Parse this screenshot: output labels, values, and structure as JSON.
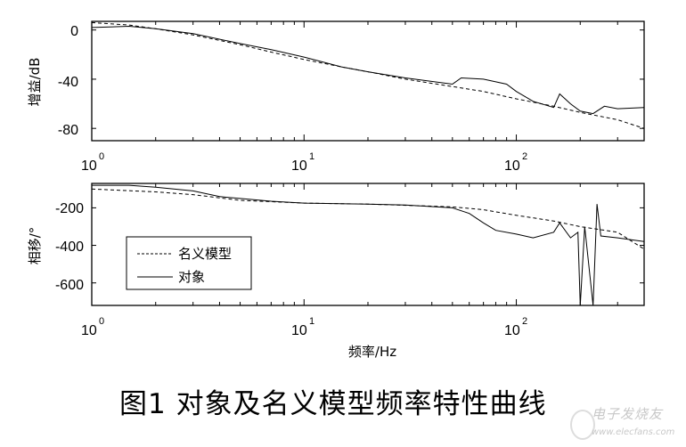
{
  "figure": {
    "caption": "图1 对象及名义模型频率特性曲线",
    "watermark": {
      "cn": "电子发烧友",
      "url": "www.elecfans.com"
    }
  },
  "legend": {
    "items": [
      {
        "label": "名义模型",
        "style": "dashed"
      },
      {
        "label": "对象",
        "style": "solid"
      }
    ]
  },
  "chart_data": [
    {
      "type": "line",
      "title": "",
      "xlabel": "",
      "ylabel": "增益/dB",
      "xscale": "log",
      "xlim": [
        1,
        400
      ],
      "ylim": [
        -90,
        7
      ],
      "xticks": [
        "10^0",
        "10^1",
        "10^2"
      ],
      "yticks": [
        0,
        -40,
        -80
      ],
      "grid": false,
      "series": [
        {
          "name": "名义模型",
          "style": "dashed",
          "x": [
            1,
            1.5,
            2,
            3,
            5,
            7,
            10,
            15,
            20,
            30,
            50,
            70,
            100,
            150,
            200,
            300,
            400
          ],
          "y": [
            6,
            4,
            1,
            -4,
            -12,
            -18,
            -24,
            -30,
            -34,
            -40,
            -46,
            -50,
            -56,
            -62,
            -67,
            -73,
            -80
          ]
        },
        {
          "name": "对象",
          "style": "solid",
          "x": [
            1,
            1.5,
            2,
            3,
            5,
            7,
            10,
            15,
            20,
            30,
            50,
            55,
            70,
            90,
            100,
            120,
            150,
            160,
            180,
            200,
            230,
            260,
            300,
            400
          ],
          "y": [
            2,
            3,
            1,
            -3,
            -11,
            -16,
            -22,
            -30,
            -34,
            -39,
            -44,
            -39,
            -40,
            -44,
            -50,
            -58,
            -63,
            -52,
            -60,
            -66,
            -68,
            -62,
            -64,
            -63
          ]
        }
      ]
    },
    {
      "type": "line",
      "title": "",
      "xlabel": "频率/Hz",
      "ylabel": "相移/°",
      "xscale": "log",
      "xlim": [
        1,
        400
      ],
      "ylim": [
        -720,
        -70
      ],
      "xticks": [
        "10^0",
        "10^1",
        "10^2"
      ],
      "yticks": [
        -200,
        -400,
        -600
      ],
      "grid": false,
      "legend_position": "lower left",
      "series": [
        {
          "name": "名义模型",
          "style": "dashed",
          "x": [
            1,
            2,
            3,
            5,
            10,
            20,
            50,
            70,
            100,
            150,
            200,
            300,
            400
          ],
          "y": [
            -100,
            -115,
            -130,
            -160,
            -175,
            -180,
            -195,
            -210,
            -240,
            -270,
            -300,
            -330,
            -420
          ]
        },
        {
          "name": "对象",
          "style": "solid",
          "x": [
            1,
            1.5,
            2,
            3,
            4,
            5,
            7,
            10,
            20,
            30,
            50,
            60,
            70,
            80,
            100,
            120,
            150,
            160,
            180,
            195,
            200,
            210,
            230,
            240,
            250,
            300,
            400
          ],
          "y": [
            -80,
            -80,
            -90,
            -110,
            -140,
            -150,
            -165,
            -175,
            -180,
            -185,
            -200,
            -230,
            -280,
            -320,
            -340,
            -360,
            -330,
            -280,
            -360,
            -330,
            -720,
            -300,
            -720,
            -180,
            -350,
            -360,
            -380
          ]
        }
      ]
    }
  ]
}
